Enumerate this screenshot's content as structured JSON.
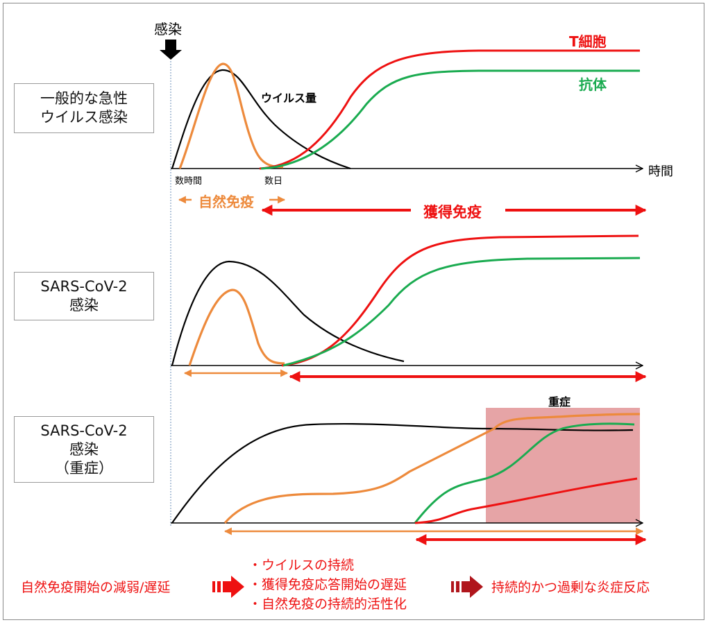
{
  "infection_label": "感染",
  "panels": [
    {
      "label_lines": [
        "一般的な急性",
        "ウイルス感染"
      ]
    },
    {
      "label_lines": [
        "SARS-CoV-2",
        "感染"
      ]
    },
    {
      "label_lines": [
        "SARS-CoV-2",
        "感染",
        "（重症）"
      ]
    }
  ],
  "curve_labels": {
    "virus": "ウイルス量",
    "tcell": "T細胞",
    "antibody": "抗体",
    "time_axis": "時間",
    "tick_hours": "数時間",
    "tick_days": "数日",
    "severe": "重症"
  },
  "phases": {
    "innate": "自然免疫",
    "acquired": "獲得免疫"
  },
  "summary": {
    "left": "自然免疫開始の減弱/遅延",
    "bullets": [
      "・ウイルスの持続",
      "・獲得免疫応答開始の遅延",
      "・自然免疫の持続的活性化"
    ],
    "right": "持続的かつ過剰な炎症反応"
  },
  "colors": {
    "virus": "#000000",
    "innate": "#ed8a3c",
    "tcell": "#ee1111",
    "antibody": "#1aab50",
    "severe_shade": "#e6a4a6",
    "accent_red": "#ee1111"
  }
}
